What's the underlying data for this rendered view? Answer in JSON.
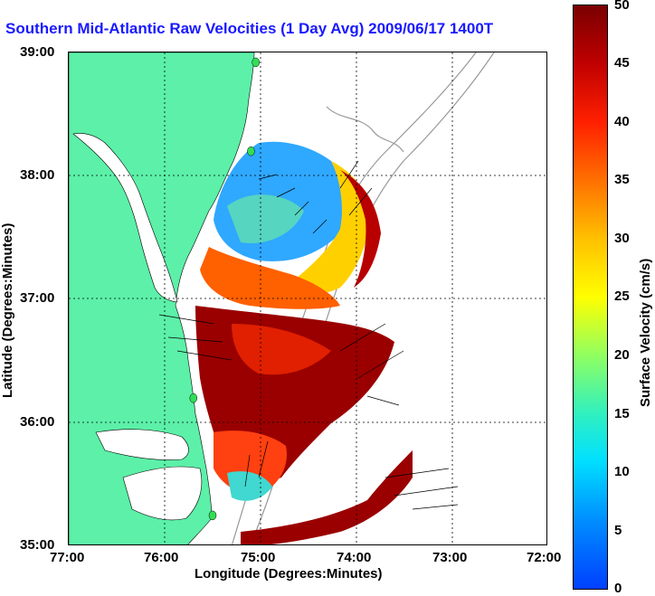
{
  "title": "Southern Mid-Atlantic Raw Velocities (1 Day Avg) 2009/06/17 1400",
  "title_tail": "T",
  "x_axis": {
    "title": "Longitude (Degrees:Minutes)",
    "ticks": [
      "77:00",
      "76:00",
      "75:00",
      "74:00",
      "73:00",
      "72:00"
    ]
  },
  "y_axis": {
    "title": "Latitude (Degrees:Minutes)",
    "ticks": [
      "39:00",
      "38:00",
      "37:00",
      "36:00",
      "35:00"
    ]
  },
  "colorbar": {
    "title": "Surface Velocity (cm/s)",
    "ticks": [
      "50",
      "45",
      "40",
      "35",
      "30",
      "25",
      "20",
      "15",
      "10",
      "5",
      "0"
    ]
  },
  "colors": {
    "land": "#5cf0a8",
    "title": "#1a1aff",
    "bathymetry": "#999999"
  },
  "stations": [
    {
      "lon": -75.05,
      "lat": 38.92
    },
    {
      "lon": -75.1,
      "lat": 38.2
    },
    {
      "lon": -75.7,
      "lat": 36.2
    },
    {
      "lon": -75.5,
      "lat": 35.25
    }
  ]
}
